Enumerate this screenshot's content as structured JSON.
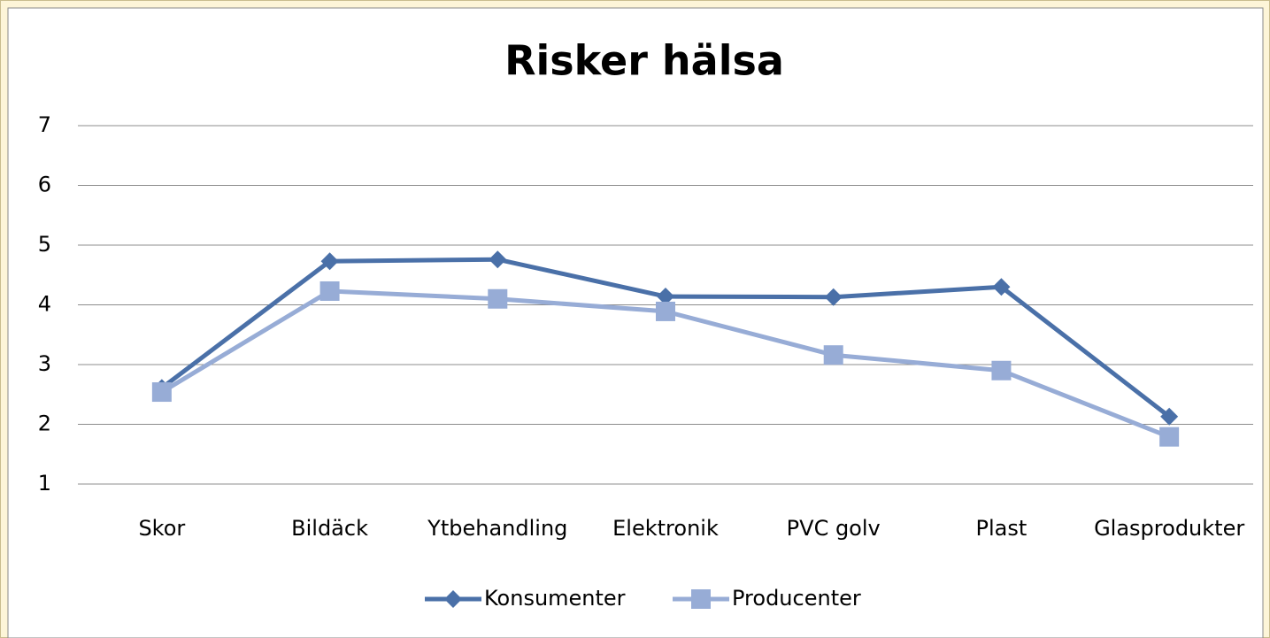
{
  "chart_data": {
    "type": "line",
    "title": "Risker hälsa",
    "categories": [
      "Skor",
      "Bildäck",
      "Ytbehandling",
      "Elektronik",
      "PVC golv",
      "Plast",
      "Glasprodukter"
    ],
    "series": [
      {
        "name": "Konsumenter",
        "color": "#4a70a8",
        "marker": "diamond",
        "values": [
          2.61,
          4.73,
          4.76,
          4.14,
          4.13,
          4.3,
          2.13
        ]
      },
      {
        "name": "Producenter",
        "color": "#97acd6",
        "marker": "square",
        "values": [
          2.54,
          4.23,
          4.1,
          3.89,
          3.16,
          2.9,
          1.79
        ]
      }
    ],
    "ylim": [
      1,
      7
    ],
    "yticks": [
      1,
      2,
      3,
      4,
      5,
      6,
      7
    ],
    "grid": true,
    "legend": "bottom"
  }
}
